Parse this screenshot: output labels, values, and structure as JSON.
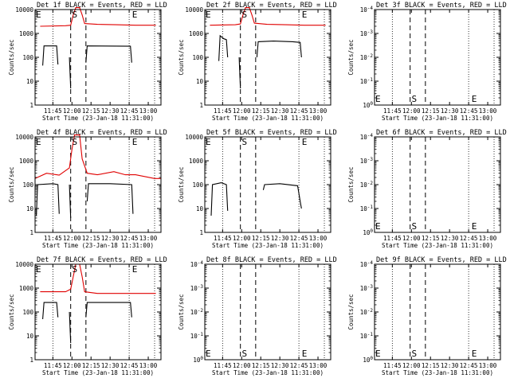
{
  "chart_data": [
    {
      "panel": 1,
      "title": "Det 1f BLACK = Events, RED = LLD",
      "xlabel": "Start Time (23-Jan-18 11:31:00)",
      "ylabel": "Counts/sec",
      "yscale": "log",
      "yticks": [
        "1",
        "10",
        "100",
        "1000",
        "10000"
      ],
      "xticks": [
        "11:45",
        "12:00",
        "12:15",
        "12:30",
        "12:45",
        "13:00"
      ],
      "xlim": [
        "11:31",
        "13:10"
      ],
      "markers": [
        {
          "label": "E",
          "time": "11:33"
        },
        {
          "label": "S",
          "time": "12:01"
        },
        {
          "label": "E",
          "time": "12:46"
        }
      ],
      "has_data": true,
      "series": [
        {
          "color": "#e00000",
          "points": [
            [
              "11:35",
              2000
            ],
            [
              "11:55",
              2100
            ],
            [
              "11:59",
              2200
            ],
            [
              "12:01",
              6000
            ],
            [
              "12:03",
              12000
            ],
            [
              "12:06",
              12000
            ],
            [
              "12:08",
              6000
            ],
            [
              "12:10",
              2600
            ],
            [
              "12:20",
              2400
            ],
            [
              "12:35",
              2300
            ],
            [
              "12:50",
              2200
            ],
            [
              "13:06",
              2200
            ]
          ]
        },
        {
          "color": "#000000",
          "points": [
            [
              "11:37",
              45
            ],
            [
              "11:38",
              300
            ],
            [
              "11:48",
              300
            ],
            [
              "11:49",
              50
            ]
          ]
        },
        {
          "color": "#000000",
          "points": [
            [
              "11:58",
              100
            ],
            [
              "11:59",
              5
            ]
          ]
        },
        {
          "color": "#000000",
          "points": [
            [
              "12:11",
              60
            ],
            [
              "12:12",
              300
            ],
            [
              "12:46",
              290
            ],
            [
              "12:47",
              60
            ]
          ]
        }
      ]
    },
    {
      "panel": 2,
      "title": "Det 2f BLACK = Events, RED = LLD",
      "xlabel": "Start Time (23-Jan-18 11:31:00)",
      "ylabel": "Counts/sec",
      "yscale": "log",
      "yticks": [
        "1",
        "10",
        "100",
        "1000",
        "10000"
      ],
      "xticks": [
        "11:45",
        "12:00",
        "12:15",
        "12:30",
        "12:45",
        "13:00"
      ],
      "xlim": [
        "11:31",
        "13:10"
      ],
      "markers": [
        {
          "label": "E",
          "time": "11:33"
        },
        {
          "label": "S",
          "time": "12:01"
        },
        {
          "label": "E",
          "time": "12:46"
        }
      ],
      "has_data": true,
      "series": [
        {
          "color": "#e00000",
          "points": [
            [
              "11:35",
              2200
            ],
            [
              "11:55",
              2300
            ],
            [
              "11:59",
              2500
            ],
            [
              "12:01",
              6000
            ],
            [
              "12:03",
              12000
            ],
            [
              "12:06",
              12000
            ],
            [
              "12:08",
              6000
            ],
            [
              "12:10",
              2700
            ],
            [
              "12:20",
              2400
            ],
            [
              "12:35",
              2300
            ],
            [
              "12:50",
              2200
            ],
            [
              "13:06",
              2200
            ]
          ]
        },
        {
          "color": "#000000",
          "points": [
            [
              "11:42",
              70
            ],
            [
              "11:43",
              800
            ],
            [
              "11:46",
              600
            ],
            [
              "11:48",
              550
            ],
            [
              "11:49",
              100
            ]
          ]
        },
        {
          "color": "#000000",
          "points": [
            [
              "11:58",
              100
            ],
            [
              "11:59",
              5
            ]
          ]
        },
        {
          "color": "#000000",
          "points": [
            [
              "12:12",
              100
            ],
            [
              "12:13",
              450
            ],
            [
              "12:25",
              480
            ],
            [
              "12:40",
              450
            ],
            [
              "12:46",
              420
            ],
            [
              "12:47",
              100
            ]
          ]
        }
      ]
    },
    {
      "panel": 3,
      "title": "Det 3f BLACK = Events, RED = LLD",
      "xlabel": "Start Time (23-Jan-18 11:31:00)",
      "ylabel": "Counts/sec",
      "yscale": "log",
      "yticks": [
        "10^0",
        "10^-1",
        "10^-2",
        "10^-3",
        "10^-4"
      ],
      "xticks": [
        "11:45",
        "12:00",
        "12:15",
        "12:30",
        "12:45",
        "13:00"
      ],
      "xlim": [
        "11:31",
        "13:10"
      ],
      "markers": [
        {
          "label": "E",
          "time": "11:33"
        },
        {
          "label": "S",
          "time": "12:01"
        },
        {
          "label": "E",
          "time": "12:46"
        }
      ],
      "has_data": false,
      "series": []
    },
    {
      "panel": 4,
      "title": "Det 4f BLACK = Events, RED = LLD",
      "xlabel": "Start Time (23-Jan-18 11:31:00)",
      "ylabel": "Counts/sec",
      "yscale": "log",
      "yticks": [
        "1",
        "10",
        "100",
        "1000",
        "10000"
      ],
      "xticks": [
        "11:45",
        "12:00",
        "12:15",
        "12:30",
        "12:45",
        "13:00"
      ],
      "xlim": [
        "11:31",
        "13:10"
      ],
      "markers": [
        {
          "label": "E",
          "time": "11:33"
        },
        {
          "label": "S",
          "time": "12:01"
        },
        {
          "label": "E",
          "time": "12:46"
        }
      ],
      "has_data": true,
      "series": [
        {
          "color": "#e00000",
          "points": [
            [
              "11:31",
              180
            ],
            [
              "11:40",
              300
            ],
            [
              "11:50",
              250
            ],
            [
              "11:58",
              500
            ],
            [
              "12:00",
              3000
            ],
            [
              "12:02",
              12000
            ],
            [
              "12:06",
              12000
            ],
            [
              "12:08",
              1200
            ],
            [
              "12:12",
              300
            ],
            [
              "12:20",
              260
            ],
            [
              "12:33",
              350
            ],
            [
              "12:42",
              260
            ],
            [
              "12:50",
              260
            ],
            [
              "13:05",
              180
            ],
            [
              "13:10",
              180
            ]
          ]
        },
        {
          "color": "#000000",
          "points": [
            [
              "11:32",
              5
            ],
            [
              "11:33",
              100
            ],
            [
              "11:45",
              110
            ],
            [
              "11:49",
              100
            ],
            [
              "11:50",
              6
            ]
          ]
        },
        {
          "color": "#000000",
          "points": [
            [
              "11:58",
              100
            ],
            [
              "11:59",
              4
            ]
          ]
        },
        {
          "color": "#000000",
          "points": [
            [
              "12:12",
              20
            ],
            [
              "12:13",
              110
            ],
            [
              "12:30",
              110
            ],
            [
              "12:47",
              100
            ],
            [
              "12:48",
              6
            ]
          ]
        }
      ]
    },
    {
      "panel": 5,
      "title": "Det 5f BLACK = Events, RED = LLD",
      "xlabel": "Start Time (23-Jan-18 11:31:00)",
      "ylabel": "Counts/sec",
      "yscale": "log",
      "yticks": [
        "1",
        "10",
        "100",
        "1000",
        "10000"
      ],
      "xticks": [
        "11:45",
        "12:00",
        "12:15",
        "12:30",
        "12:45",
        "13:00"
      ],
      "xlim": [
        "11:31",
        "13:10"
      ],
      "markers": [
        {
          "label": "E",
          "time": "11:33"
        },
        {
          "label": "S",
          "time": "12:01"
        },
        {
          "label": "E",
          "time": "12:46"
        }
      ],
      "has_data": true,
      "series": [
        {
          "color": "#000000",
          "points": [
            [
              "11:36",
              5
            ],
            [
              "11:37",
              100
            ],
            [
              "11:44",
              120
            ],
            [
              "11:48",
              100
            ],
            [
              "11:49",
              8
            ]
          ]
        },
        {
          "color": "#000000",
          "points": [
            [
              "12:17",
              60
            ],
            [
              "12:18",
              100
            ],
            [
              "12:30",
              110
            ],
            [
              "12:44",
              90
            ],
            [
              "12:46",
              20
            ],
            [
              "12:47",
              10
            ]
          ]
        }
      ]
    },
    {
      "panel": 6,
      "title": "Det 6f BLACK = Events, RED = LLD",
      "xlabel": "Start Time (23-Jan-18 11:31:00)",
      "ylabel": "Counts/sec",
      "yscale": "log",
      "yticks": [
        "10^0",
        "10^-1",
        "10^-2",
        "10^-3",
        "10^-4"
      ],
      "xticks": [
        "11:45",
        "12:00",
        "12:15",
        "12:30",
        "12:45",
        "13:00"
      ],
      "xlim": [
        "11:31",
        "13:10"
      ],
      "markers": [
        {
          "label": "E",
          "time": "11:33"
        },
        {
          "label": "S",
          "time": "12:01"
        },
        {
          "label": "E",
          "time": "12:46"
        }
      ],
      "has_data": false,
      "series": []
    },
    {
      "panel": 7,
      "title": "Det 7f BLACK = Events, RED = LLD",
      "xlabel": "Start Time (23-Jan-18 11:31:00)",
      "ylabel": "Counts/sec",
      "yscale": "log",
      "yticks": [
        "1",
        "10",
        "100",
        "1000",
        "10000"
      ],
      "xticks": [
        "11:45",
        "12:00",
        "12:15",
        "12:30",
        "12:45",
        "13:00"
      ],
      "xlim": [
        "11:31",
        "13:10"
      ],
      "markers": [
        {
          "label": "E",
          "time": "11:33"
        },
        {
          "label": "S",
          "time": "12:01"
        },
        {
          "label": "E",
          "time": "12:46"
        }
      ],
      "has_data": true,
      "series": [
        {
          "color": "#e00000",
          "points": [
            [
              "11:35",
              700
            ],
            [
              "11:55",
              700
            ],
            [
              "11:59",
              900
            ],
            [
              "12:01",
              3000
            ],
            [
              "12:03",
              10000
            ],
            [
              "12:06",
              10000
            ],
            [
              "12:08",
              3000
            ],
            [
              "12:10",
              700
            ],
            [
              "12:20",
              600
            ],
            [
              "12:40",
              600
            ],
            [
              "13:06",
              600
            ]
          ]
        },
        {
          "color": "#000000",
          "points": [
            [
              "11:37",
              50
            ],
            [
              "11:38",
              250
            ],
            [
              "11:48",
              250
            ],
            [
              "11:49",
              60
            ]
          ]
        },
        {
          "color": "#000000",
          "points": [
            [
              "11:58",
              100
            ],
            [
              "11:59",
              5
            ]
          ]
        },
        {
          "color": "#000000",
          "points": [
            [
              "12:11",
              60
            ],
            [
              "12:12",
              250
            ],
            [
              "12:46",
              250
            ],
            [
              "12:47",
              60
            ]
          ]
        }
      ]
    },
    {
      "panel": 8,
      "title": "Det 8f BLACK = Events, RED = LLD",
      "xlabel": "Start Time (23-Jan-18 11:31:00)",
      "ylabel": "Counts/sec",
      "yscale": "log",
      "yticks": [
        "10^0",
        "10^-1",
        "10^-2",
        "10^-3",
        "10^-4"
      ],
      "xticks": [
        "11:45",
        "12:00",
        "12:15",
        "12:30",
        "12:45",
        "13:00"
      ],
      "xlim": [
        "11:31",
        "13:10"
      ],
      "markers": [
        {
          "label": "E",
          "time": "11:33"
        },
        {
          "label": "S",
          "time": "12:01"
        },
        {
          "label": "E",
          "time": "12:46"
        }
      ],
      "has_data": false,
      "series": []
    },
    {
      "panel": 9,
      "title": "Det 9f BLACK = Events, RED = LLD",
      "xlabel": "Start Time (23-Jan-18 11:31:00)",
      "ylabel": "Counts/sec",
      "yscale": "log",
      "yticks": [
        "10^0",
        "10^-1",
        "10^-2",
        "10^-3",
        "10^-4"
      ],
      "xticks": [
        "11:45",
        "12:00",
        "12:15",
        "12:30",
        "12:45",
        "13:00"
      ],
      "xlim": [
        "11:31",
        "13:10"
      ],
      "markers": [
        {
          "label": "E",
          "time": "11:33"
        },
        {
          "label": "S",
          "time": "12:01"
        },
        {
          "label": "E",
          "time": "12:46"
        }
      ],
      "has_data": false,
      "series": []
    }
  ]
}
